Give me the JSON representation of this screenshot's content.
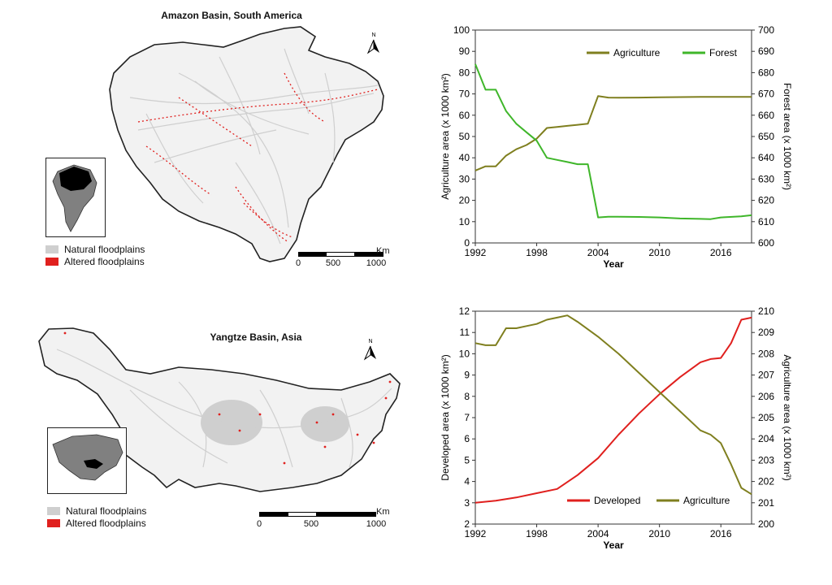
{
  "maps": [
    {
      "title": "Amazon Basin, South America",
      "north_label": "N",
      "legend": [
        "Natural floodplains",
        "Altered floodplains"
      ],
      "scale": {
        "ticks": [
          "0",
          "500",
          "1000"
        ],
        "unit": "Km"
      }
    },
    {
      "title": "Yangtze Basin, Asia",
      "north_label": "N",
      "legend": [
        "Natural floodplains",
        "Altered floodplains"
      ],
      "scale": {
        "ticks": [
          "0",
          "500",
          "1000"
        ],
        "unit": "Km"
      }
    }
  ],
  "colors": {
    "natural": "#cfcfcf",
    "altered": "#e0201e",
    "agriculture": "#7f7f1f",
    "forest": "#3fb62a",
    "developed": "#e0201e"
  },
  "chart_data": [
    {
      "type": "line",
      "title": "",
      "xlabel": "Year",
      "ylabel": "Agriculture area (x 1000 km²)",
      "y2label": "Forest area (x 1000 km²)",
      "xlim": [
        1992,
        2019
      ],
      "ylim": [
        0,
        100
      ],
      "y2lim": [
        600,
        700
      ],
      "xticks": [
        "1992",
        "1998",
        "2004",
        "2010",
        "2016"
      ],
      "yticks": [
        "0",
        "10",
        "20",
        "30",
        "40",
        "50",
        "60",
        "70",
        "80",
        "90",
        "100"
      ],
      "y2ticks": [
        "600",
        "610",
        "620",
        "630",
        "640",
        "650",
        "660",
        "670",
        "680",
        "690",
        "700"
      ],
      "legend_position": "top-right",
      "series": [
        {
          "name": "Agriculture",
          "axis": "left",
          "color": "#7f7f1f",
          "x": [
            1992,
            1993,
            1994,
            1995,
            1996,
            1997,
            1998,
            1999,
            2000,
            2001,
            2002,
            2003,
            2004,
            2005,
            2006,
            2008,
            2010,
            2012,
            2014,
            2016,
            2018,
            2019
          ],
          "y": [
            34,
            36,
            36,
            41,
            44,
            46,
            49,
            54,
            54.5,
            55,
            55.5,
            56,
            69,
            68.3,
            68.2,
            68.3,
            68.4,
            68.5,
            68.6,
            68.6,
            68.6,
            68.6
          ]
        },
        {
          "name": "Forest",
          "axis": "right",
          "color": "#3fb62a",
          "x": [
            1992,
            1993,
            1994,
            1995,
            1996,
            1997,
            1998,
            1999,
            2000,
            2001,
            2002,
            2003,
            2004,
            2005,
            2006,
            2008,
            2010,
            2012,
            2014,
            2015,
            2016,
            2018,
            2019
          ],
          "y": [
            684,
            672,
            672,
            662,
            656,
            652,
            648,
            640,
            639,
            638,
            637,
            637,
            612,
            612.3,
            612.3,
            612.2,
            612,
            611.5,
            611.3,
            611.2,
            612,
            612.5,
            613
          ]
        }
      ]
    },
    {
      "type": "line",
      "title": "",
      "xlabel": "Year",
      "ylabel": "Developed area (x 1000 km²)",
      "y2label": "Agriculture area (x 1000 km²)",
      "xlim": [
        1992,
        2019
      ],
      "ylim": [
        2,
        12
      ],
      "y2lim": [
        200,
        210
      ],
      "xticks": [
        "1992",
        "1998",
        "2004",
        "2010",
        "2016"
      ],
      "yticks": [
        "2",
        "3",
        "4",
        "5",
        "6",
        "7",
        "8",
        "9",
        "10",
        "11",
        "12"
      ],
      "y2ticks": [
        "200",
        "201",
        "202",
        "203",
        "204",
        "205",
        "206",
        "207",
        "208",
        "209",
        "210"
      ],
      "legend_position": "bottom-right",
      "series": [
        {
          "name": "Developed",
          "axis": "left",
          "color": "#e0201e",
          "x": [
            1992,
            1994,
            1996,
            1998,
            2000,
            2002,
            2004,
            2006,
            2008,
            2010,
            2012,
            2014,
            2015,
            2016,
            2017,
            2018,
            2019
          ],
          "y": [
            3.0,
            3.1,
            3.25,
            3.45,
            3.65,
            4.3,
            5.1,
            6.2,
            7.2,
            8.1,
            8.9,
            9.6,
            9.75,
            9.8,
            10.5,
            11.6,
            11.7
          ]
        },
        {
          "name": "Agriculture",
          "axis": "right",
          "color": "#7f7f1f",
          "x": [
            1992,
            1993,
            1994,
            1995,
            1996,
            1997,
            1998,
            1999,
            2000,
            2001,
            2002,
            2004,
            2006,
            2008,
            2010,
            2012,
            2014,
            2015,
            2016,
            2017,
            2018,
            2019
          ],
          "y": [
            208.5,
            208.4,
            208.4,
            209.2,
            209.2,
            209.3,
            209.4,
            209.6,
            209.7,
            209.8,
            209.5,
            208.8,
            208.0,
            207.1,
            206.2,
            205.3,
            204.4,
            204.2,
            203.8,
            202.8,
            201.7,
            201.4
          ]
        }
      ]
    }
  ]
}
